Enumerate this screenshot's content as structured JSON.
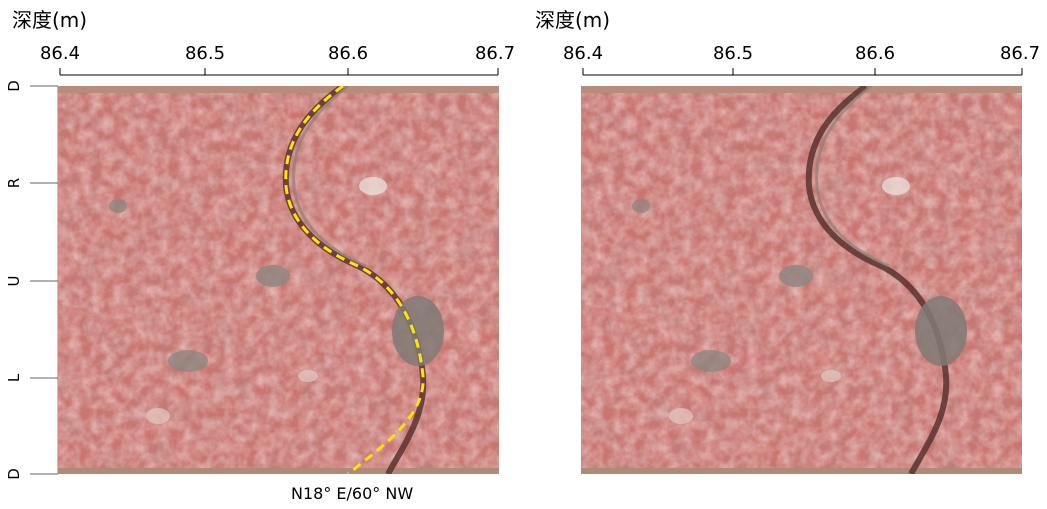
{
  "panels": [
    {
      "depth_label": "深度(m)",
      "ticks": [
        "86.4",
        "86.5",
        "86.6",
        "86.7"
      ],
      "side_labels": [
        "D",
        "R",
        "U",
        "L",
        "D"
      ],
      "fracture_trace": true,
      "attitude": "N18° E/60° NW"
    },
    {
      "depth_label": "深度(m)",
      "ticks": [
        "86.4",
        "86.5",
        "86.6",
        "86.7"
      ],
      "fracture_trace": false
    }
  ],
  "colors": {
    "rock_base": "#c97570",
    "rock_dark": "#a5524f",
    "fracture_trace": "#ffe600"
  }
}
